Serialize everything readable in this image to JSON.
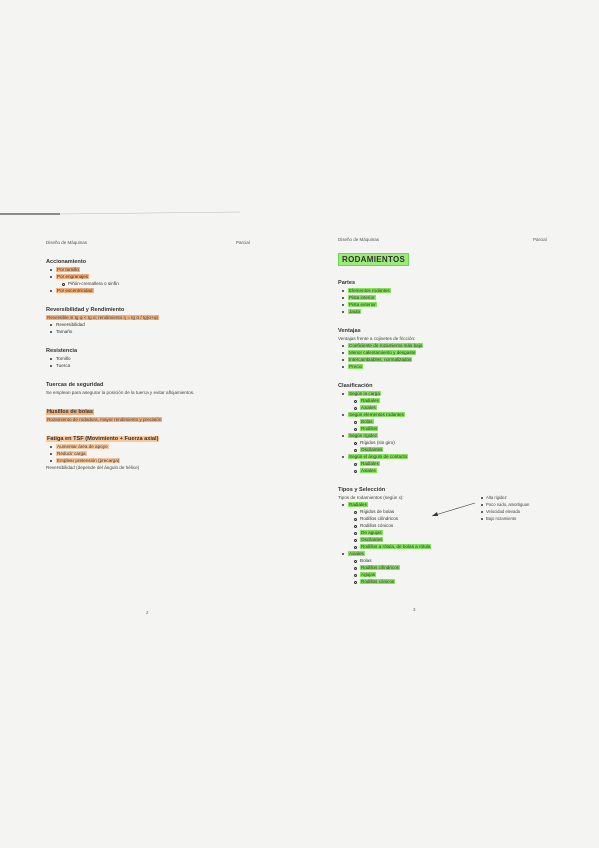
{
  "left_page": {
    "header_left": "Diseño de Máquinas",
    "header_right": "Parcial",
    "page_number": "2",
    "blocks": [
      {
        "kind": "heading",
        "text": "Accionamiento"
      },
      {
        "kind": "item",
        "level": 1,
        "text": "Por tornillo",
        "highlight": "#f6b07a"
      },
      {
        "kind": "item",
        "level": 1,
        "text": "Por engranajes",
        "highlight": "#f6b07a"
      },
      {
        "kind": "item",
        "level": 2,
        "text": "Piñón-cremallera o sinfín"
      },
      {
        "kind": "item",
        "level": 1,
        "text": "Por excentricidad",
        "highlight": "#f6b07a"
      },
      {
        "kind": "heading",
        "text": "Reversibilidad y Rendimiento"
      },
      {
        "kind": "para",
        "text": "Reversible si tg φ < tg α; rendimiento η = tg α / tg(α+φ)",
        "highlight": "#f6b07a"
      },
      {
        "kind": "item",
        "level": 1,
        "text": "Reversibilidad"
      },
      {
        "kind": "item",
        "level": 1,
        "text": "Tamaño"
      },
      {
        "kind": "heading",
        "text": "Resistencia"
      },
      {
        "kind": "item",
        "level": 1,
        "text": "Tornillo"
      },
      {
        "kind": "item",
        "level": 1,
        "text": "Tuerca"
      },
      {
        "kind": "heading",
        "text": "Tuercas de seguridad"
      },
      {
        "kind": "para",
        "text": "Se emplean para asegurar la posición de la tuerca y evitar aflojamientos."
      },
      {
        "kind": "heading",
        "text": "Husillos de bolas",
        "highlight": "#f6b07a"
      },
      {
        "kind": "para",
        "text": "Rozamiento de rodadura, mayor rendimiento y precisión",
        "highlight": "#f6b07a"
      },
      {
        "kind": "heading",
        "text": "Fatiga en TSF (Movimiento + Fuerza axial)",
        "highlight": "#f8c89c"
      },
      {
        "kind": "item",
        "level": 1,
        "text": "Aumentar área de apoyo",
        "highlight": "#f8c89c"
      },
      {
        "kind": "item",
        "level": 1,
        "text": "Reducir carga",
        "highlight": "#f8c89c"
      },
      {
        "kind": "item",
        "level": 1,
        "text": "Emplear pretensión (precarga)",
        "highlight": "#f8c89c"
      },
      {
        "kind": "para",
        "text": "Reversibilidad (depende del ángulo de hélice)"
      }
    ]
  },
  "right_page": {
    "header_left": "Diseño de Máquinas",
    "header_right": "Parcial",
    "page_number": "3",
    "title": "RODAMIENTOS",
    "blocks": [
      {
        "kind": "heading",
        "text": "Partes"
      },
      {
        "kind": "item",
        "level": 1,
        "text": "Elementos rodantes",
        "highlight": "#86e35e"
      },
      {
        "kind": "item",
        "level": 1,
        "text": "Pista interior",
        "highlight": "#86e35e"
      },
      {
        "kind": "item",
        "level": 1,
        "text": "Pista exterior",
        "highlight": "#86e35e"
      },
      {
        "kind": "item",
        "level": 1,
        "text": "Jaula",
        "highlight": "#86e35e"
      },
      {
        "kind": "heading",
        "text": "Ventajas"
      },
      {
        "kind": "para",
        "text": "Ventajas frente a cojinetes de fricción:"
      },
      {
        "kind": "item",
        "level": 1,
        "text": "Coeficiente de rozamiento más bajo",
        "highlight": "#86e35e"
      },
      {
        "kind": "item",
        "level": 1,
        "text": "Menor calentamiento y desgaste",
        "highlight": "#86e35e"
      },
      {
        "kind": "item",
        "level": 1,
        "text": "Intercambiables, normalizados",
        "highlight": "#86e35e"
      },
      {
        "kind": "item",
        "level": 1,
        "text": "Precio",
        "highlight": "#86e35e"
      },
      {
        "kind": "heading",
        "text": "Clasificación"
      },
      {
        "kind": "item",
        "level": 1,
        "text": "Según la carga",
        "highlight": "#86e35e"
      },
      {
        "kind": "item",
        "level": 2,
        "text": "Radiales",
        "highlight": "#86e35e"
      },
      {
        "kind": "item",
        "level": 2,
        "text": "Axiales",
        "highlight": "#86e35e"
      },
      {
        "kind": "item",
        "level": 1,
        "text": "Según elementos rodantes",
        "highlight": "#86e35e"
      },
      {
        "kind": "item",
        "level": 2,
        "text": "Bolas",
        "highlight": "#86e35e"
      },
      {
        "kind": "item",
        "level": 2,
        "text": "Rodillos",
        "highlight": "#86e35e"
      },
      {
        "kind": "item",
        "level": 1,
        "text": "Según rigidez",
        "highlight": "#86e35e"
      },
      {
        "kind": "item",
        "level": 2,
        "text": "Rígidos (sin giro)"
      },
      {
        "kind": "item",
        "level": 2,
        "text": "Oscilantes",
        "highlight": "#86e35e"
      },
      {
        "kind": "item",
        "level": 1,
        "text": "Según el ángulo de contacto",
        "highlight": "#86e35e"
      },
      {
        "kind": "item",
        "level": 2,
        "text": "Radiales",
        "highlight": "#86e35e"
      },
      {
        "kind": "item",
        "level": 2,
        "text": "Axiales",
        "highlight": "#86e35e"
      },
      {
        "kind": "heading",
        "text": "Tipos y Selección"
      },
      {
        "kind": "para",
        "text": "Tipos de rodamientos (según x):"
      },
      {
        "kind": "item",
        "level": 1,
        "text": "Radiales",
        "highlight": "#86e35e"
      },
      {
        "kind": "item",
        "level": 2,
        "text": "Rígidos de bolas"
      },
      {
        "kind": "item",
        "level": 2,
        "text": "Rodillos cilíndricos"
      },
      {
        "kind": "item",
        "level": 2,
        "text": "Rodillos cónicos"
      },
      {
        "kind": "item",
        "level": 2,
        "text": "De agujas",
        "highlight": "#86e35e"
      },
      {
        "kind": "item",
        "level": 2,
        "text": "Oscilantes",
        "highlight": "#86e35e"
      },
      {
        "kind": "item",
        "level": 2,
        "text": "Rodillos a rótula, de bolas a rótula",
        "highlight": "#86e35e"
      },
      {
        "kind": "item",
        "level": 1,
        "text": "Axiales",
        "highlight": "#86e35e"
      },
      {
        "kind": "item",
        "level": 2,
        "text": "Bolas"
      },
      {
        "kind": "item",
        "level": 2,
        "text": "Rodillos cilíndricos",
        "highlight": "#86e35e"
      },
      {
        "kind": "item",
        "level": 2,
        "text": "Agujas",
        "highlight": "#86e35e"
      },
      {
        "kind": "item",
        "level": 2,
        "text": "Rodillos cónicos",
        "highlight": "#86e35e"
      }
    ],
    "side_note": [
      "Alta rigidez",
      "Poco ruido, amortiguan",
      "Velocidad elevada",
      "Bajo rozamiento"
    ]
  }
}
